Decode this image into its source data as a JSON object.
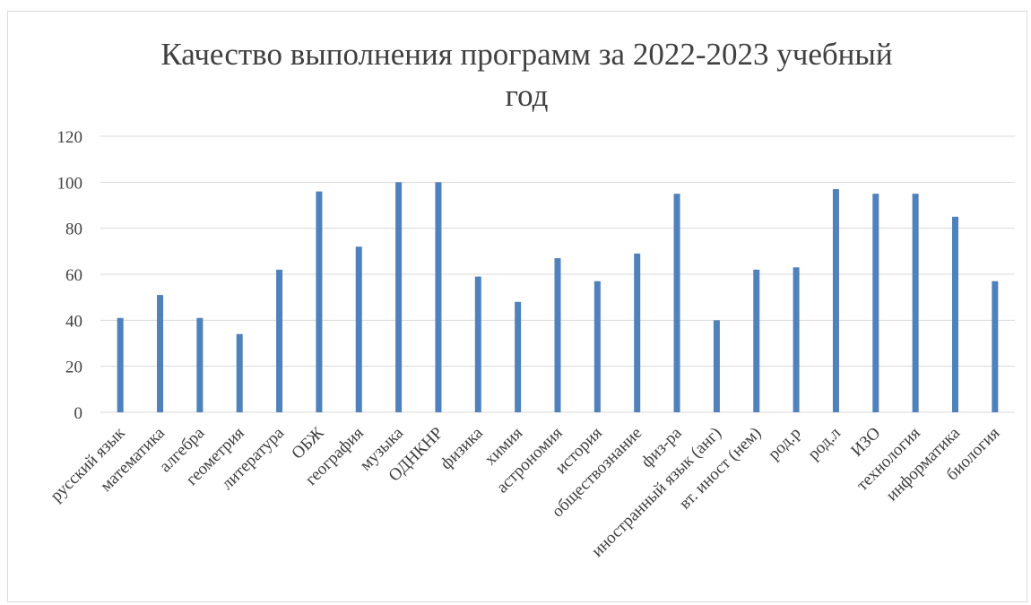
{
  "chart_data": {
    "type": "bar",
    "title_line1": "Качество выполнения программ за 2022-2023 учебный",
    "title_line2": "год",
    "categories": [
      "русский язык",
      "математика",
      "алгебра",
      "геометрия",
      "литература",
      "ОБЖ",
      "география",
      "музыка",
      "ОДНКНР",
      "физика",
      "химия",
      "астрономия",
      "история",
      "обществознание",
      "физ-ра",
      "иностранный язык (анг)",
      "вт. иност (нем)",
      "род.р",
      "род.л",
      "ИЗО",
      "технология",
      "информатика",
      "биология"
    ],
    "values": [
      41,
      51,
      41,
      34,
      62,
      96,
      72,
      100,
      100,
      59,
      48,
      67,
      57,
      69,
      95,
      40,
      62,
      63,
      97,
      95,
      95,
      85,
      57
    ],
    "ylim": [
      0,
      120
    ],
    "yticks": [
      0,
      20,
      40,
      60,
      80,
      100,
      120
    ],
    "grid": true,
    "bar_color": "#4f81bd",
    "grid_color": "#d9d9d9",
    "legend": "none"
  }
}
